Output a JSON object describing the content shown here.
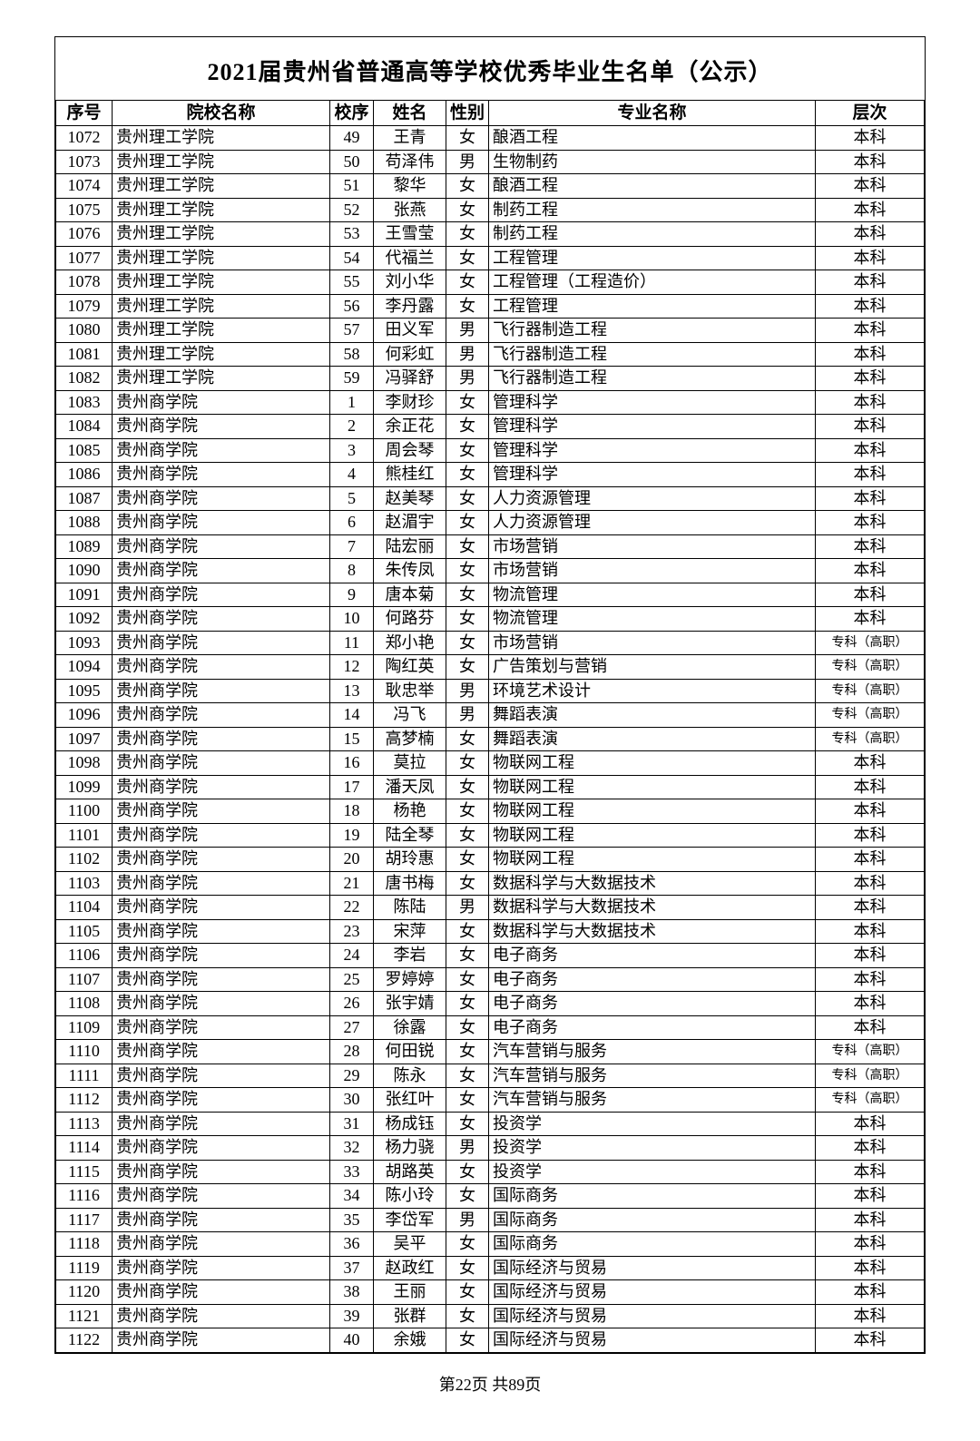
{
  "title": "2021届贵州省普通高等学校优秀毕业生名单（公示）",
  "columns": [
    "序号",
    "院校名称",
    "校序",
    "姓名",
    "性别",
    "专业名称",
    "层次"
  ],
  "rows": [
    {
      "seq": "1072",
      "school": "贵州理工学院",
      "schseq": "49",
      "name": "王青",
      "gender": "女",
      "major": "酿酒工程",
      "level": "本科",
      "small": false
    },
    {
      "seq": "1073",
      "school": "贵州理工学院",
      "schseq": "50",
      "name": "苟泽伟",
      "gender": "男",
      "major": "生物制药",
      "level": "本科",
      "small": false
    },
    {
      "seq": "1074",
      "school": "贵州理工学院",
      "schseq": "51",
      "name": "黎华",
      "gender": "女",
      "major": "酿酒工程",
      "level": "本科",
      "small": false
    },
    {
      "seq": "1075",
      "school": "贵州理工学院",
      "schseq": "52",
      "name": "张燕",
      "gender": "女",
      "major": "制药工程",
      "level": "本科",
      "small": false
    },
    {
      "seq": "1076",
      "school": "贵州理工学院",
      "schseq": "53",
      "name": "王雪莹",
      "gender": "女",
      "major": "制药工程",
      "level": "本科",
      "small": false
    },
    {
      "seq": "1077",
      "school": "贵州理工学院",
      "schseq": "54",
      "name": "代福兰",
      "gender": "女",
      "major": "工程管理",
      "level": "本科",
      "small": false
    },
    {
      "seq": "1078",
      "school": "贵州理工学院",
      "schseq": "55",
      "name": "刘小华",
      "gender": "女",
      "major": "工程管理（工程造价）",
      "level": "本科",
      "small": false
    },
    {
      "seq": "1079",
      "school": "贵州理工学院",
      "schseq": "56",
      "name": "李丹露",
      "gender": "女",
      "major": "工程管理",
      "level": "本科",
      "small": false
    },
    {
      "seq": "1080",
      "school": "贵州理工学院",
      "schseq": "57",
      "name": "田义军",
      "gender": "男",
      "major": "飞行器制造工程",
      "level": "本科",
      "small": false
    },
    {
      "seq": "1081",
      "school": "贵州理工学院",
      "schseq": "58",
      "name": "何彩虹",
      "gender": "男",
      "major": "飞行器制造工程",
      "level": "本科",
      "small": false
    },
    {
      "seq": "1082",
      "school": "贵州理工学院",
      "schseq": "59",
      "name": "冯驿舒",
      "gender": "男",
      "major": "飞行器制造工程",
      "level": "本科",
      "small": false
    },
    {
      "seq": "1083",
      "school": "贵州商学院",
      "schseq": "1",
      "name": "李财珍",
      "gender": "女",
      "major": "管理科学",
      "level": "本科",
      "small": false
    },
    {
      "seq": "1084",
      "school": "贵州商学院",
      "schseq": "2",
      "name": "余正花",
      "gender": "女",
      "major": "管理科学",
      "level": "本科",
      "small": false
    },
    {
      "seq": "1085",
      "school": "贵州商学院",
      "schseq": "3",
      "name": "周会琴",
      "gender": "女",
      "major": "管理科学",
      "level": "本科",
      "small": false
    },
    {
      "seq": "1086",
      "school": "贵州商学院",
      "schseq": "4",
      "name": "熊桂红",
      "gender": "女",
      "major": "管理科学",
      "level": "本科",
      "small": false
    },
    {
      "seq": "1087",
      "school": "贵州商学院",
      "schseq": "5",
      "name": "赵美琴",
      "gender": "女",
      "major": "人力资源管理",
      "level": "本科",
      "small": false
    },
    {
      "seq": "1088",
      "school": "贵州商学院",
      "schseq": "6",
      "name": "赵湄宇",
      "gender": "女",
      "major": "人力资源管理",
      "level": "本科",
      "small": false
    },
    {
      "seq": "1089",
      "school": "贵州商学院",
      "schseq": "7",
      "name": "陆宏丽",
      "gender": "女",
      "major": "市场营销",
      "level": "本科",
      "small": false
    },
    {
      "seq": "1090",
      "school": "贵州商学院",
      "schseq": "8",
      "name": "朱传凤",
      "gender": "女",
      "major": "市场营销",
      "level": "本科",
      "small": false
    },
    {
      "seq": "1091",
      "school": "贵州商学院",
      "schseq": "9",
      "name": "唐本菊",
      "gender": "女",
      "major": "物流管理",
      "level": "本科",
      "small": false
    },
    {
      "seq": "1092",
      "school": "贵州商学院",
      "schseq": "10",
      "name": "何路芬",
      "gender": "女",
      "major": "物流管理",
      "level": "本科",
      "small": false
    },
    {
      "seq": "1093",
      "school": "贵州商学院",
      "schseq": "11",
      "name": "郑小艳",
      "gender": "女",
      "major": "市场营销",
      "level": "专科（高职）",
      "small": true
    },
    {
      "seq": "1094",
      "school": "贵州商学院",
      "schseq": "12",
      "name": "陶红英",
      "gender": "女",
      "major": "广告策划与营销",
      "level": "专科（高职）",
      "small": true
    },
    {
      "seq": "1095",
      "school": "贵州商学院",
      "schseq": "13",
      "name": "耿忠举",
      "gender": "男",
      "major": "环境艺术设计",
      "level": "专科（高职）",
      "small": true
    },
    {
      "seq": "1096",
      "school": "贵州商学院",
      "schseq": "14",
      "name": "冯飞",
      "gender": "男",
      "major": "舞蹈表演",
      "level": "专科（高职）",
      "small": true
    },
    {
      "seq": "1097",
      "school": "贵州商学院",
      "schseq": "15",
      "name": "高梦楠",
      "gender": "女",
      "major": "舞蹈表演",
      "level": "专科（高职）",
      "small": true
    },
    {
      "seq": "1098",
      "school": "贵州商学院",
      "schseq": "16",
      "name": "莫拉",
      "gender": "女",
      "major": "物联网工程",
      "level": "本科",
      "small": false
    },
    {
      "seq": "1099",
      "school": "贵州商学院",
      "schseq": "17",
      "name": "潘天凤",
      "gender": "女",
      "major": "物联网工程",
      "level": "本科",
      "small": false
    },
    {
      "seq": "1100",
      "school": "贵州商学院",
      "schseq": "18",
      "name": "杨艳",
      "gender": "女",
      "major": "物联网工程",
      "level": "本科",
      "small": false
    },
    {
      "seq": "1101",
      "school": "贵州商学院",
      "schseq": "19",
      "name": "陆全琴",
      "gender": "女",
      "major": "物联网工程",
      "level": "本科",
      "small": false
    },
    {
      "seq": "1102",
      "school": "贵州商学院",
      "schseq": "20",
      "name": "胡玲惠",
      "gender": "女",
      "major": "物联网工程",
      "level": "本科",
      "small": false
    },
    {
      "seq": "1103",
      "school": "贵州商学院",
      "schseq": "21",
      "name": "唐书梅",
      "gender": "女",
      "major": "数据科学与大数据技术",
      "level": "本科",
      "small": false
    },
    {
      "seq": "1104",
      "school": "贵州商学院",
      "schseq": "22",
      "name": "陈陆",
      "gender": "男",
      "major": "数据科学与大数据技术",
      "level": "本科",
      "small": false
    },
    {
      "seq": "1105",
      "school": "贵州商学院",
      "schseq": "23",
      "name": "宋萍",
      "gender": "女",
      "major": "数据科学与大数据技术",
      "level": "本科",
      "small": false
    },
    {
      "seq": "1106",
      "school": "贵州商学院",
      "schseq": "24",
      "name": "李岩",
      "gender": "女",
      "major": "电子商务",
      "level": "本科",
      "small": false
    },
    {
      "seq": "1107",
      "school": "贵州商学院",
      "schseq": "25",
      "name": "罗婷婷",
      "gender": "女",
      "major": "电子商务",
      "level": "本科",
      "small": false
    },
    {
      "seq": "1108",
      "school": "贵州商学院",
      "schseq": "26",
      "name": "张宇婧",
      "gender": "女",
      "major": "电子商务",
      "level": "本科",
      "small": false
    },
    {
      "seq": "1109",
      "school": "贵州商学院",
      "schseq": "27",
      "name": "徐露",
      "gender": "女",
      "major": "电子商务",
      "level": "本科",
      "small": false
    },
    {
      "seq": "1110",
      "school": "贵州商学院",
      "schseq": "28",
      "name": "何田锐",
      "gender": "女",
      "major": "汽车营销与服务",
      "level": "专科（高职）",
      "small": true
    },
    {
      "seq": "1111",
      "school": "贵州商学院",
      "schseq": "29",
      "name": "陈永",
      "gender": "女",
      "major": "汽车营销与服务",
      "level": "专科（高职）",
      "small": true
    },
    {
      "seq": "1112",
      "school": "贵州商学院",
      "schseq": "30",
      "name": "张红叶",
      "gender": "女",
      "major": "汽车营销与服务",
      "level": "专科（高职）",
      "small": true
    },
    {
      "seq": "1113",
      "school": "贵州商学院",
      "schseq": "31",
      "name": "杨成钰",
      "gender": "女",
      "major": "投资学",
      "level": "本科",
      "small": false
    },
    {
      "seq": "1114",
      "school": "贵州商学院",
      "schseq": "32",
      "name": "杨力骁",
      "gender": "男",
      "major": "投资学",
      "level": "本科",
      "small": false
    },
    {
      "seq": "1115",
      "school": "贵州商学院",
      "schseq": "33",
      "name": "胡路英",
      "gender": "女",
      "major": "投资学",
      "level": "本科",
      "small": false
    },
    {
      "seq": "1116",
      "school": "贵州商学院",
      "schseq": "34",
      "name": "陈小玲",
      "gender": "女",
      "major": "国际商务",
      "level": "本科",
      "small": false
    },
    {
      "seq": "1117",
      "school": "贵州商学院",
      "schseq": "35",
      "name": "李岱军",
      "gender": "男",
      "major": "国际商务",
      "level": "本科",
      "small": false
    },
    {
      "seq": "1118",
      "school": "贵州商学院",
      "schseq": "36",
      "name": "吴平",
      "gender": "女",
      "major": "国际商务",
      "level": "本科",
      "small": false
    },
    {
      "seq": "1119",
      "school": "贵州商学院",
      "schseq": "37",
      "name": "赵政红",
      "gender": "女",
      "major": "国际经济与贸易",
      "level": "本科",
      "small": false
    },
    {
      "seq": "1120",
      "school": "贵州商学院",
      "schseq": "38",
      "name": "王丽",
      "gender": "女",
      "major": "国际经济与贸易",
      "level": "本科",
      "small": false
    },
    {
      "seq": "1121",
      "school": "贵州商学院",
      "schseq": "39",
      "name": "张群",
      "gender": "女",
      "major": "国际经济与贸易",
      "level": "本科",
      "small": false
    },
    {
      "seq": "1122",
      "school": "贵州商学院",
      "schseq": "40",
      "name": "余娥",
      "gender": "女",
      "major": "国际经济与贸易",
      "level": "本科",
      "small": false
    }
  ],
  "footer": "第22页 共89页"
}
